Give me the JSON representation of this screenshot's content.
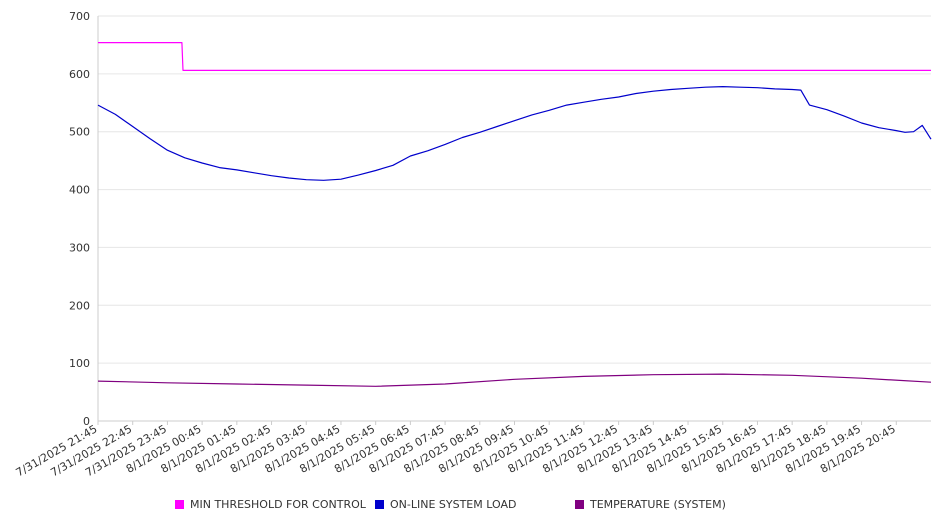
{
  "chart_data": {
    "type": "line",
    "title": "",
    "xlabel": "",
    "ylabel": "",
    "ylim": [
      0,
      700
    ],
    "yticks": [
      0,
      100,
      200,
      300,
      400,
      500,
      600,
      700
    ],
    "grid": true,
    "legend_position": "bottom",
    "x_ticks": [
      "7/31/2025 21:45",
      "7/31/2025 22:45",
      "7/31/2025 23:45",
      "8/1/2025 00:45",
      "8/1/2025 01:45",
      "8/1/2025 02:45",
      "8/1/2025 03:45",
      "8/1/2025 04:45",
      "8/1/2025 05:45",
      "8/1/2025 06:45",
      "8/1/2025 07:45",
      "8/1/2025 08:45",
      "8/1/2025 09:45",
      "8/1/2025 10:45",
      "8/1/2025 11:45",
      "8/1/2025 12:45",
      "8/1/2025 13:45",
      "8/1/2025 14:45",
      "8/1/2025 15:45",
      "8/1/2025 16:45",
      "8/1/2025 17:45",
      "8/1/2025 18:45",
      "8/1/2025 19:45",
      "8/1/2025 20:45"
    ],
    "x_start": "7/31/2025 21:45",
    "x_end": "8/1/2025 21:45",
    "series": [
      {
        "name": "MIN THRESHOLD FOR CONTROL",
        "color": "#ff00ff",
        "x": [
          "7/31/2025 21:45",
          "8/1/2025 00:10",
          "8/1/2025 00:12",
          "8/1/2025 21:45"
        ],
        "values": [
          654,
          654,
          606,
          606
        ]
      },
      {
        "name": "ON-LINE SYSTEM LOAD",
        "color": "#0000cc",
        "x": [
          "7/31/2025 21:45",
          "7/31/2025 22:15",
          "7/31/2025 22:45",
          "7/31/2025 23:15",
          "7/31/2025 23:45",
          "8/1/2025 00:15",
          "8/1/2025 00:45",
          "8/1/2025 01:15",
          "8/1/2025 01:45",
          "8/1/2025 02:15",
          "8/1/2025 02:45",
          "8/1/2025 03:15",
          "8/1/2025 03:45",
          "8/1/2025 04:15",
          "8/1/2025 04:45",
          "8/1/2025 05:15",
          "8/1/2025 05:45",
          "8/1/2025 06:15",
          "8/1/2025 06:45",
          "8/1/2025 07:15",
          "8/1/2025 07:45",
          "8/1/2025 08:15",
          "8/1/2025 08:45",
          "8/1/2025 09:15",
          "8/1/2025 09:45",
          "8/1/2025 10:15",
          "8/1/2025 10:45",
          "8/1/2025 11:15",
          "8/1/2025 11:45",
          "8/1/2025 12:15",
          "8/1/2025 12:45",
          "8/1/2025 13:15",
          "8/1/2025 13:45",
          "8/1/2025 14:15",
          "8/1/2025 14:45",
          "8/1/2025 15:15",
          "8/1/2025 15:45",
          "8/1/2025 16:15",
          "8/1/2025 16:45",
          "8/1/2025 17:15",
          "8/1/2025 17:45",
          "8/1/2025 18:00",
          "8/1/2025 18:15",
          "8/1/2025 18:45",
          "8/1/2025 19:15",
          "8/1/2025 19:45",
          "8/1/2025 20:15",
          "8/1/2025 20:45",
          "8/1/2025 21:00",
          "8/1/2025 21:15",
          "8/1/2025 21:30",
          "8/1/2025 21:45"
        ],
        "values": [
          546,
          530,
          509,
          488,
          468,
          455,
          446,
          438,
          434,
          429,
          424,
          420,
          417,
          416,
          418,
          425,
          433,
          442,
          458,
          467,
          478,
          490,
          499,
          509,
          519,
          529,
          537,
          546,
          551,
          556,
          560,
          566,
          570,
          573,
          575,
          577,
          578,
          577,
          576,
          574,
          573,
          572,
          546,
          538,
          527,
          515,
          507,
          502,
          499,
          500,
          511,
          487
        ]
      },
      {
        "name": "TEMPERATURE (SYSTEM)",
        "color": "#800080",
        "x": [
          "7/31/2025 21:45",
          "7/31/2025 23:45",
          "8/1/2025 01:45",
          "8/1/2025 03:45",
          "8/1/2025 05:45",
          "8/1/2025 07:45",
          "8/1/2025 09:45",
          "8/1/2025 11:45",
          "8/1/2025 13:45",
          "8/1/2025 15:45",
          "8/1/2025 17:45",
          "8/1/2025 19:45",
          "8/1/2025 21:45"
        ],
        "values": [
          69,
          66,
          64,
          62,
          60,
          64,
          72,
          77,
          80,
          81,
          79,
          74,
          67
        ]
      }
    ]
  }
}
